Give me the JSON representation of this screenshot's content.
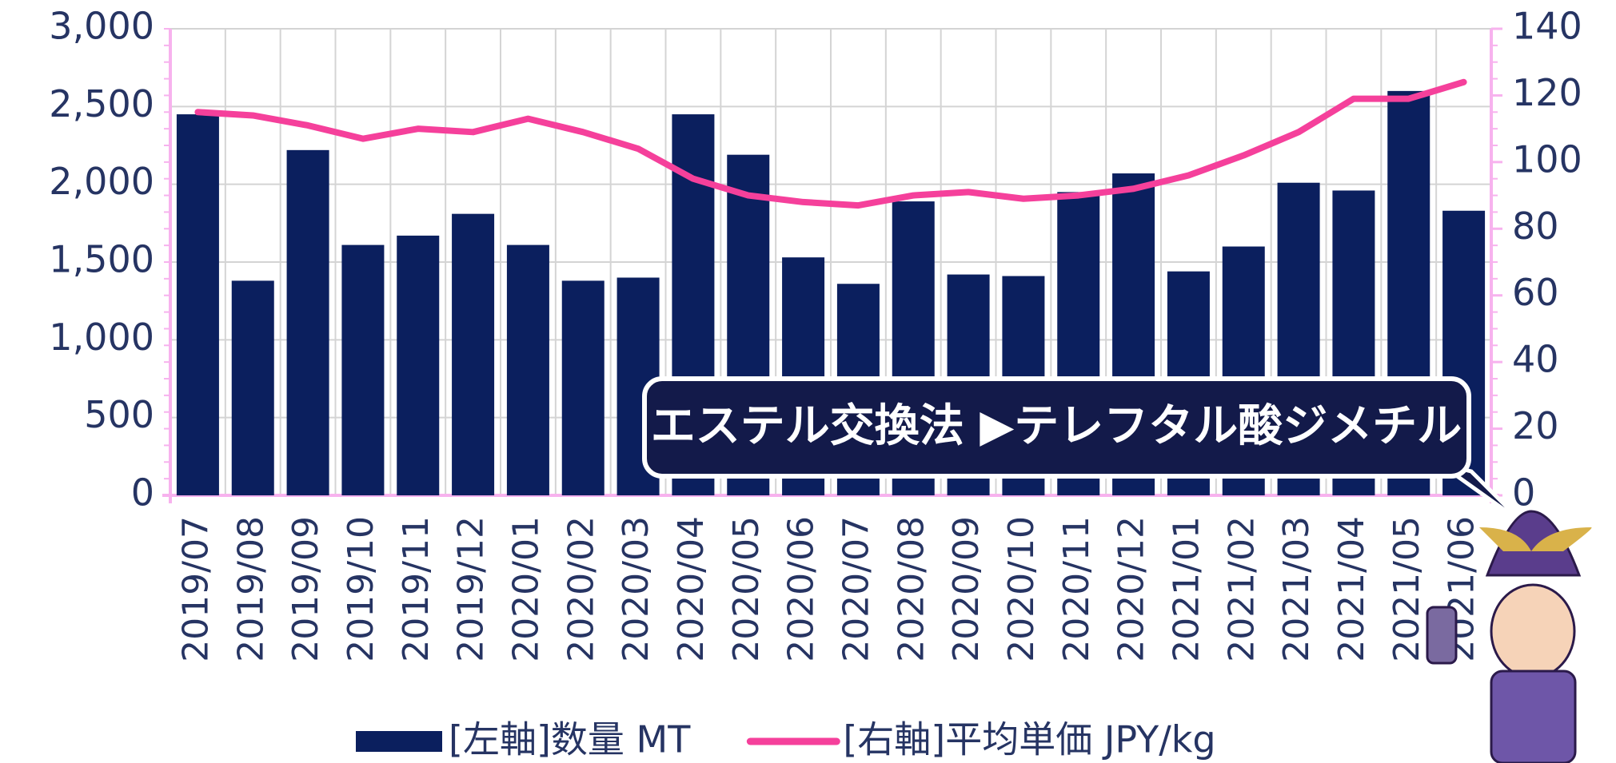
{
  "chart_data": {
    "type": "bar-line",
    "annotation": "エステル交換法 ▶テレフタル酸ジメチル",
    "categories": [
      "2019/07",
      "2019/08",
      "2019/09",
      "2019/10",
      "2019/11",
      "2019/12",
      "2020/01",
      "2020/02",
      "2020/03",
      "2020/04",
      "2020/05",
      "2020/06",
      "2020/07",
      "2020/08",
      "2020/09",
      "2020/10",
      "2020/11",
      "2020/12",
      "2021/01",
      "2021/02",
      "2021/03",
      "2021/04",
      "2021/05",
      "2021/06"
    ],
    "series": [
      {
        "name": "[左軸]数量 MT",
        "type": "bar",
        "color": "#0b1f5e",
        "axis": "y",
        "values": [
          2450,
          1380,
          2220,
          1610,
          1670,
          1810,
          1610,
          1380,
          1400,
          2450,
          2190,
          1530,
          1360,
          1890,
          1420,
          1410,
          1950,
          2070,
          1440,
          1600,
          2010,
          1960,
          2600,
          1830
        ]
      },
      {
        "name": "[右軸]平均単価 JPY/kg",
        "type": "line",
        "color": "#f5409b",
        "axis": "y2",
        "values": [
          115,
          114,
          111,
          107,
          110,
          109,
          113,
          109,
          104,
          95,
          90,
          88,
          87,
          90,
          91,
          89,
          90,
          92,
          96,
          102,
          109,
          119,
          119,
          124
        ]
      }
    ],
    "ylim": [
      0,
      3000
    ],
    "yticks": [
      0,
      500,
      {
        "value": 1000,
        "label": "1,000"
      },
      {
        "value": 1500,
        "label": "1,500"
      },
      {
        "value": 2000,
        "label": "2,000"
      },
      {
        "value": 2500,
        "label": "2,500"
      },
      {
        "value": 3000,
        "label": "3,000"
      }
    ],
    "y2lim": [
      0,
      140
    ],
    "y2ticks": [
      0,
      20,
      40,
      60,
      80,
      100,
      120,
      140
    ],
    "grid": true,
    "legend": "bottom"
  }
}
